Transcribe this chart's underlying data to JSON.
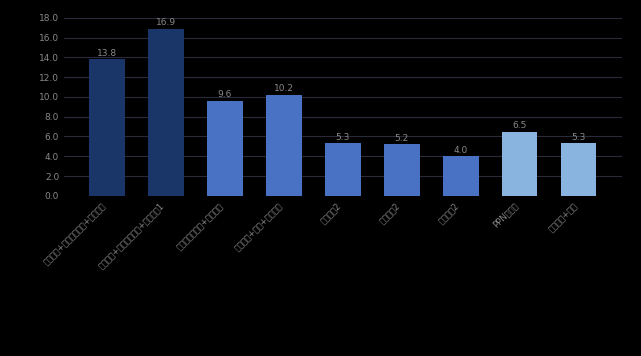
{
  "values": [
    13.8,
    16.9,
    9.6,
    10.2,
    5.3,
    5.2,
    4.0,
    6.5,
    5.3
  ],
  "bar_colors": [
    "#1a3668",
    "#1a3668",
    "#4a72c4",
    "#4a72c4",
    "#4a72c4",
    "#4a72c4",
    "#4a72c4",
    "#8ab4e0",
    "#8ab4e0"
  ],
  "x_labels": [
    "基礎醫療+基本藥物制度+家庭醫生",
    "基礎醫療+基本藥物制度+家庭醫生1",
    "醫聯體心身整合+家庭醫生",
    "心身整合+心理+家庭醫生",
    "家庭醫生2",
    "心身整合2",
    "家庭醫生2",
    "PPN處方量",
    "地區心身+心理"
  ],
  "ylim": [
    0,
    18.0
  ],
  "yticks": [
    0.0,
    2.0,
    4.0,
    6.0,
    8.0,
    10.0,
    12.0,
    14.0,
    16.0,
    18.0
  ],
  "background_color": "#000000",
  "plot_bg_color": "#000000",
  "grid_color": "#2a2a3a",
  "text_color": "#888888",
  "label_fontsize": 6,
  "value_fontsize": 6.5
}
